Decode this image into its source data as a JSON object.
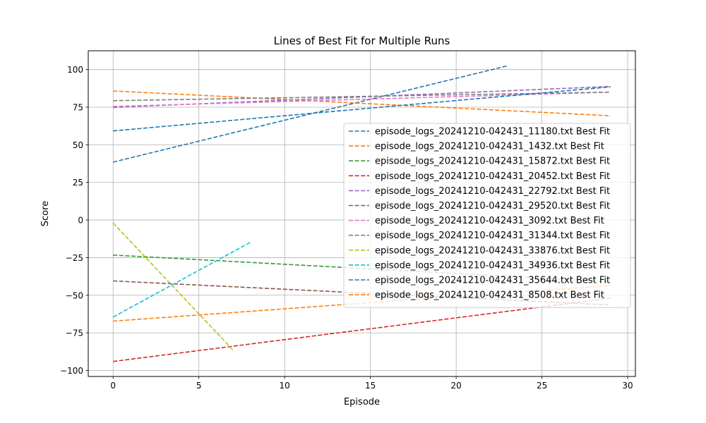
{
  "chart_data": {
    "type": "line",
    "title": "Lines of Best Fit for Multiple Runs",
    "xlabel": "Episode",
    "ylabel": "Score",
    "xlim": [
      -1.45,
      30.45
    ],
    "ylim": [
      -104,
      112.5
    ],
    "xticks": [
      0,
      5,
      10,
      15,
      20,
      25,
      30
    ],
    "yticks": [
      -100,
      -75,
      -50,
      -25,
      0,
      25,
      50,
      75,
      100
    ],
    "grid": true,
    "legend_position": "center-right",
    "series": [
      {
        "name": "episode_logs_20241210-042431_11180.txt Best Fit",
        "color": "#1f77b4",
        "x": [
          0,
          23
        ],
        "y": [
          38.5,
          102.5
        ]
      },
      {
        "name": "episode_logs_20241210-042431_1432.txt Best Fit",
        "color": "#ff7f0e",
        "x": [
          0,
          29
        ],
        "y": [
          85.8,
          69.3
        ]
      },
      {
        "name": "episode_logs_20241210-042431_15872.txt Best Fit",
        "color": "#2ca02c",
        "x": [
          0,
          29
        ],
        "y": [
          -23.3,
          -41.0
        ]
      },
      {
        "name": "episode_logs_20241210-042431_20452.txt Best Fit",
        "color": "#d62728",
        "x": [
          0,
          29
        ],
        "y": [
          -94.0,
          -52.0
        ]
      },
      {
        "name": "episode_logs_20241210-042431_22792.txt Best Fit",
        "color": "#9467bd",
        "x": [
          0,
          29
        ],
        "y": [
          74.8,
          88.8
        ]
      },
      {
        "name": "episode_logs_20241210-042431_29520.txt Best Fit",
        "color": "#8c564b",
        "x": [
          0,
          29
        ],
        "y": [
          -40.5,
          -56.5
        ]
      },
      {
        "name": "episode_logs_20241210-042431_3092.txt Best Fit",
        "color": "#e377c2",
        "x": [
          0,
          29
        ],
        "y": [
          75.5,
          85.0
        ]
      },
      {
        "name": "episode_logs_20241210-042431_31344.txt Best Fit",
        "color": "#7f7f7f",
        "x": [
          0,
          29
        ],
        "y": [
          79.3,
          85.0
        ]
      },
      {
        "name": "episode_logs_20241210-042431_33876.txt Best Fit",
        "color": "#bcbd22",
        "x": [
          0,
          7
        ],
        "y": [
          -2.0,
          -86.5
        ]
      },
      {
        "name": "episode_logs_20241210-042431_34936.txt Best Fit",
        "color": "#17becf",
        "x": [
          0,
          8
        ],
        "y": [
          -64.5,
          -14.8
        ]
      },
      {
        "name": "episode_logs_20241210-042431_35644.txt Best Fit",
        "color": "#1f77b4",
        "x": [
          0,
          29
        ],
        "y": [
          59.2,
          88.5
        ]
      },
      {
        "name": "episode_logs_20241210-042431_8508.txt Best Fit",
        "color": "#ff7f0e",
        "x": [
          0,
          29
        ],
        "y": [
          -67.2,
          -43.5
        ]
      }
    ]
  }
}
